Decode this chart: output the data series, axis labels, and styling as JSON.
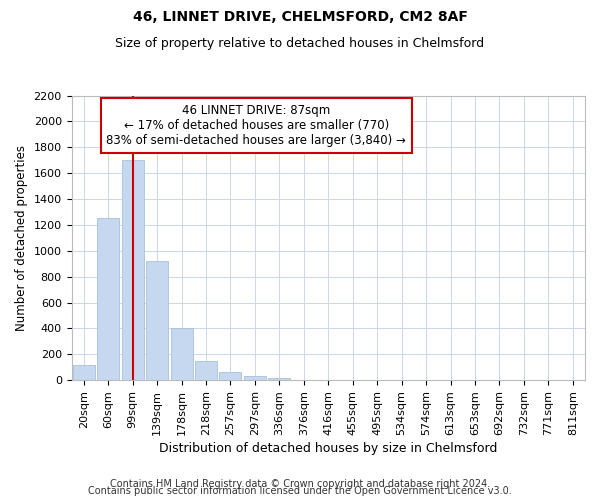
{
  "title1": "46, LINNET DRIVE, CHELMSFORD, CM2 8AF",
  "title2": "Size of property relative to detached houses in Chelmsford",
  "xlabel": "Distribution of detached houses by size in Chelmsford",
  "ylabel": "Number of detached properties",
  "categories": [
    "20sqm",
    "60sqm",
    "99sqm",
    "139sqm",
    "178sqm",
    "218sqm",
    "257sqm",
    "297sqm",
    "336sqm",
    "376sqm",
    "416sqm",
    "455sqm",
    "495sqm",
    "534sqm",
    "574sqm",
    "613sqm",
    "653sqm",
    "692sqm",
    "732sqm",
    "771sqm",
    "811sqm"
  ],
  "values": [
    120,
    1250,
    1700,
    925,
    400,
    150,
    65,
    30,
    20,
    0,
    0,
    0,
    0,
    0,
    0,
    0,
    0,
    0,
    0,
    0,
    0
  ],
  "bar_color": "#c5d8f0",
  "bar_edge_color": "#a8c0dc",
  "red_line_x": 2.0,
  "annotation_line1": "46 LINNET DRIVE: 87sqm",
  "annotation_line2": "← 17% of detached houses are smaller (770)",
  "annotation_line3": "83% of semi-detached houses are larger (3,840) →",
  "annotation_box_color": "#ffffff",
  "annotation_box_edge": "#cc0000",
  "red_line_color": "#cc0000",
  "ylim": [
    0,
    2200
  ],
  "yticks": [
    0,
    200,
    400,
    600,
    800,
    1000,
    1200,
    1400,
    1600,
    1800,
    2000,
    2200
  ],
  "footer1": "Contains HM Land Registry data © Crown copyright and database right 2024.",
  "footer2": "Contains public sector information licensed under the Open Government Licence v3.0.",
  "title1_fontsize": 10,
  "title2_fontsize": 9,
  "xlabel_fontsize": 9,
  "ylabel_fontsize": 8.5,
  "tick_fontsize": 8,
  "annotation_fontsize": 8.5,
  "footer_fontsize": 7,
  "bg_color": "#ffffff",
  "grid_color": "#c8d8eb"
}
